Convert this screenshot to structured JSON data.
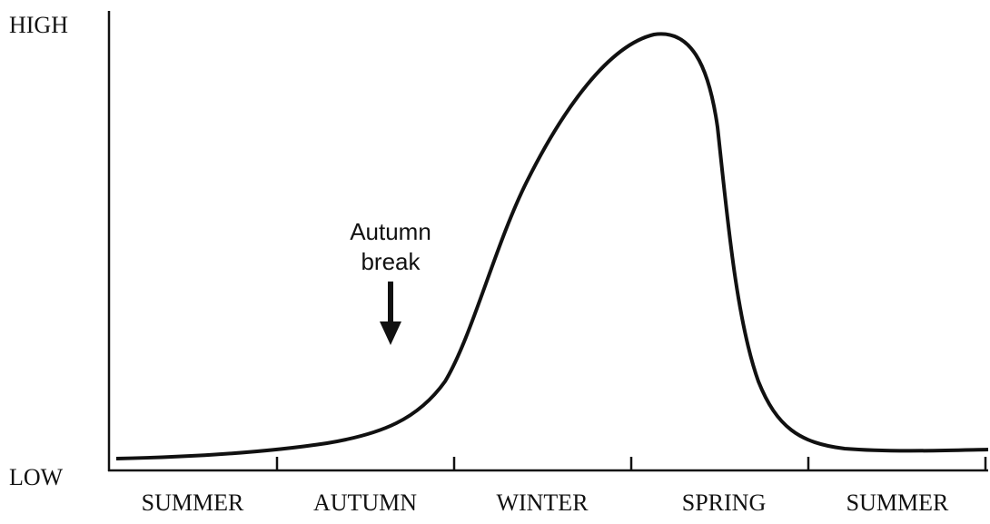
{
  "y_axis": {
    "top_label": "HIGH",
    "bottom_label": "LOW"
  },
  "x_axis": {
    "labels": [
      "SUMMER",
      "AUTUMN",
      "WINTER",
      "SPRING",
      "SUMMER"
    ]
  },
  "annotation": {
    "lines": [
      "Autumn",
      "break"
    ]
  }
}
